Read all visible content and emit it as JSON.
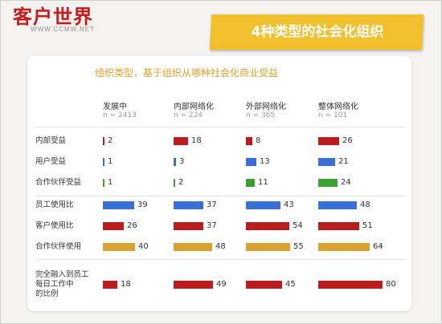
{
  "logo": {
    "main": "客户世界",
    "sub": "WWW.CCMW.NET"
  },
  "banner": {
    "title": "4种类型的社会化组织"
  },
  "chart_data": {
    "type": "bar",
    "title": "组织类型，基于组织从哪种社会化商业受益",
    "columns": [
      {
        "name": "发展中",
        "n": "n = 2413"
      },
      {
        "name": "内部网络化",
        "n": "n = 224"
      },
      {
        "name": "外部网络化",
        "n": "n = 365"
      },
      {
        "name": "整体网络化",
        "n": "n = 101"
      }
    ],
    "rows": [
      {
        "label": "内部受益",
        "color": "#b81c1c",
        "values": [
          2,
          18,
          8,
          26
        ]
      },
      {
        "label": "用户受益",
        "color": "#3b6fd8",
        "values": [
          1,
          3,
          13,
          21
        ]
      },
      {
        "label": "合作伙伴受益",
        "color": "#3ba12f",
        "values": [
          1,
          2,
          11,
          24
        ]
      },
      {
        "label": "员工使用比",
        "color": "#3b6fd8",
        "values": [
          39,
          37,
          43,
          48
        ]
      },
      {
        "label": "客户使用比",
        "color": "#b81c1c",
        "values": [
          26,
          37,
          54,
          51
        ]
      },
      {
        "label": "合作伙伴使用",
        "color": "#d9a032",
        "values": [
          40,
          48,
          55,
          64
        ]
      },
      {
        "label": "完全融入到员工\n每日工作中\n的比例",
        "color": "#b81c1c",
        "values": [
          18,
          49,
          45,
          80
        ]
      }
    ]
  }
}
